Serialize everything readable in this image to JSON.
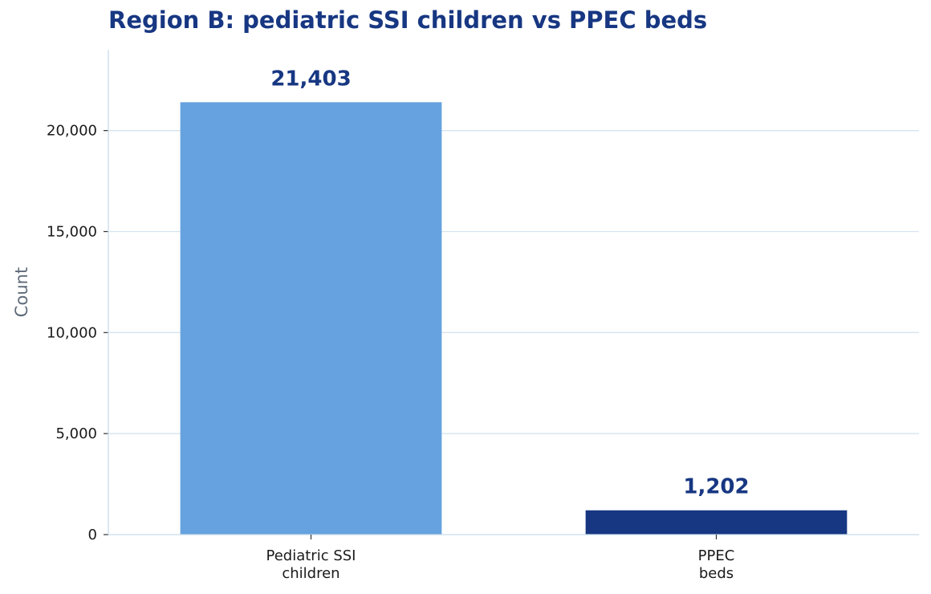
{
  "chart_data": {
    "type": "bar",
    "title": "Region B: pediatric SSI children vs PPEC beds",
    "xlabel": "",
    "ylabel": "Count",
    "categories": [
      [
        "Pediatric SSI",
        "children"
      ],
      [
        "PPEC",
        "beds"
      ]
    ],
    "values": [
      21403,
      1202
    ],
    "value_labels": [
      "21,403",
      "1,202"
    ],
    "ylim": [
      0,
      24000
    ],
    "yticks": [
      0,
      5000,
      10000,
      15000,
      20000
    ],
    "ytick_labels": [
      "0",
      "5,000",
      "10,000",
      "15,000",
      "20,000"
    ],
    "grid": "horizontal",
    "legend": "none",
    "bar_colors": [
      "#66a2df",
      "#173782"
    ],
    "colors": {
      "title": "#173782",
      "value_label": "#173782",
      "grid": "#d6e4ef",
      "axis": "#c8dcea",
      "axis_title": "#5f6b7a"
    }
  }
}
